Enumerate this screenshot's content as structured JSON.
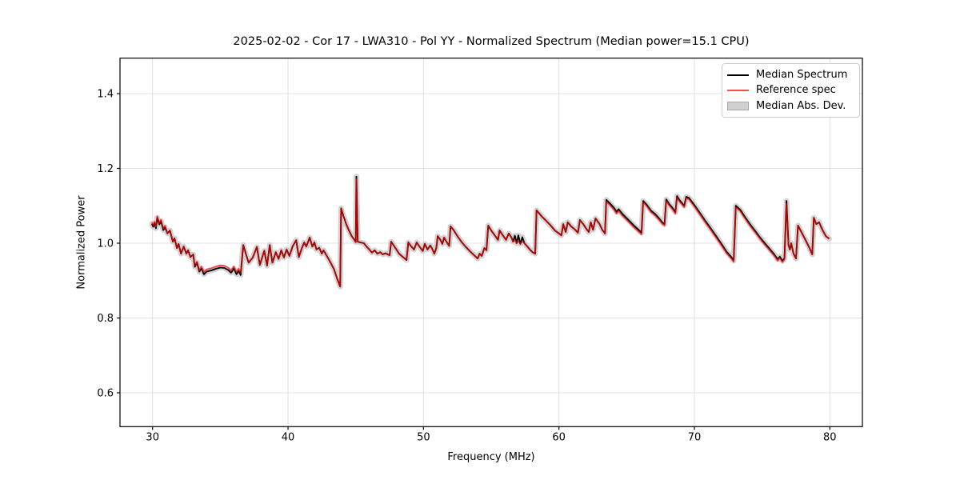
{
  "chart_data": {
    "type": "line",
    "title": "2025-02-02 - Cor 17 - LWA310 - Pol YY - Normalized Spectrum (Median power=15.1 CPU)",
    "xlabel": "Frequency (MHz)",
    "ylabel": "Normalized Power",
    "xlim": [
      27.6,
      82.4
    ],
    "ylim": [
      0.51,
      1.5
    ],
    "xticks": [
      30,
      40,
      50,
      60,
      70,
      80
    ],
    "xtick_labels": [
      "30",
      "40",
      "50",
      "60",
      "70",
      "80"
    ],
    "yticks": [
      0.6,
      0.8,
      1.0,
      1.2,
      1.4
    ],
    "ytick_labels": [
      "0.6",
      "0.8",
      "1.0",
      "1.2",
      "1.4"
    ],
    "grid": true,
    "legend": {
      "position": "upper right",
      "items": [
        {
          "label": "Median Spectrum",
          "type": "line",
          "color": "#000000"
        },
        {
          "label": "Reference spec",
          "type": "line",
          "color": "#ff4b4b"
        },
        {
          "label": "Median Abs. Dev.",
          "type": "patch",
          "color": "#d0d0d0",
          "edge": "#a8a8a8"
        }
      ]
    },
    "colors": {
      "median_line": "#000000",
      "reference_line": "#ff0000",
      "reference_opacity": 0.72,
      "mad_band": "#c8c8c8",
      "grid_line": "#e0e0e0",
      "frame": "#000000"
    },
    "series": {
      "x_unit": "MHz",
      "reference_points": [
        [
          29.95,
          1.056
        ],
        [
          30.05,
          1.048
        ],
        [
          30.15,
          1.058
        ],
        [
          30.25,
          1.044
        ],
        [
          30.35,
          1.072
        ],
        [
          30.5,
          1.054
        ],
        [
          30.62,
          1.063
        ],
        [
          30.8,
          1.039
        ],
        [
          30.92,
          1.047
        ],
        [
          31.1,
          1.026
        ],
        [
          31.28,
          1.034
        ],
        [
          31.5,
          1.004
        ],
        [
          31.62,
          1.013
        ],
        [
          31.8,
          0.987
        ],
        [
          31.92,
          0.998
        ],
        [
          32.1,
          0.972
        ],
        [
          32.3,
          0.991
        ],
        [
          32.5,
          0.972
        ],
        [
          32.62,
          0.981
        ],
        [
          32.8,
          0.963
        ],
        [
          33.0,
          0.97
        ],
        [
          33.12,
          0.94
        ],
        [
          33.28,
          0.951
        ],
        [
          33.45,
          0.927
        ],
        [
          33.6,
          0.938
        ],
        [
          33.8,
          0.923
        ],
        [
          34.0,
          0.93
        ],
        [
          34.2,
          0.932
        ],
        [
          34.4,
          0.934
        ],
        [
          34.7,
          0.938
        ],
        [
          35.0,
          0.941
        ],
        [
          35.3,
          0.94
        ],
        [
          35.6,
          0.934
        ],
        [
          35.8,
          0.927
        ],
        [
          36.0,
          0.938
        ],
        [
          36.2,
          0.923
        ],
        [
          36.35,
          0.932
        ],
        [
          36.5,
          0.921
        ],
        [
          36.7,
          0.995
        ],
        [
          36.9,
          0.97
        ],
        [
          37.1,
          0.948
        ],
        [
          37.4,
          0.962
        ],
        [
          37.7,
          0.99
        ],
        [
          37.92,
          0.942
        ],
        [
          38.25,
          0.98
        ],
        [
          38.45,
          0.94
        ],
        [
          38.65,
          0.995
        ],
        [
          38.85,
          0.948
        ],
        [
          39.1,
          0.976
        ],
        [
          39.3,
          0.958
        ],
        [
          39.5,
          0.981
        ],
        [
          39.7,
          0.962
        ],
        [
          39.9,
          0.983
        ],
        [
          40.1,
          0.966
        ],
        [
          40.35,
          0.992
        ],
        [
          40.6,
          1.008
        ],
        [
          40.8,
          0.963
        ],
        [
          41.0,
          0.985
        ],
        [
          41.2,
          1.002
        ],
        [
          41.35,
          0.991
        ],
        [
          41.6,
          1.015
        ],
        [
          41.8,
          0.991
        ],
        [
          41.95,
          1.002
        ],
        [
          42.1,
          0.983
        ],
        [
          42.3,
          0.988
        ],
        [
          42.5,
          0.972
        ],
        [
          42.62,
          0.981
        ],
        [
          42.8,
          0.97
        ],
        [
          43.1,
          0.951
        ],
        [
          43.4,
          0.93
        ],
        [
          43.6,
          0.908
        ],
        [
          43.85,
          0.884
        ],
        [
          43.92,
          1.093
        ],
        [
          44.1,
          1.072
        ],
        [
          44.3,
          1.051
        ],
        [
          44.5,
          1.034
        ],
        [
          44.7,
          1.019
        ],
        [
          44.9,
          1.009
        ],
        [
          45.0,
          1.003
        ],
        [
          45.05,
          1.172
        ],
        [
          45.15,
          1.004
        ],
        [
          45.35,
          1.002
        ],
        [
          45.6,
          1.0
        ],
        [
          45.8,
          0.991
        ],
        [
          46.0,
          0.983
        ],
        [
          46.2,
          0.975
        ],
        [
          46.4,
          0.981
        ],
        [
          46.6,
          0.972
        ],
        [
          46.8,
          0.976
        ],
        [
          47.0,
          0.97
        ],
        [
          47.2,
          0.973
        ],
        [
          47.5,
          0.968
        ],
        [
          47.62,
          1.004
        ],
        [
          47.8,
          0.994
        ],
        [
          48.0,
          0.983
        ],
        [
          48.2,
          0.972
        ],
        [
          48.45,
          0.964
        ],
        [
          48.75,
          0.955
        ],
        [
          48.88,
          1.002
        ],
        [
          49.1,
          0.991
        ],
        [
          49.3,
          0.983
        ],
        [
          49.5,
          1.002
        ],
        [
          49.7,
          0.991
        ],
        [
          49.95,
          0.979
        ],
        [
          50.1,
          0.998
        ],
        [
          50.3,
          0.983
        ],
        [
          50.5,
          0.994
        ],
        [
          50.65,
          0.985
        ],
        [
          50.8,
          0.972
        ],
        [
          50.95,
          0.987
        ],
        [
          51.05,
          1.019
        ],
        [
          51.25,
          1.009
        ],
        [
          51.4,
          0.998
        ],
        [
          51.52,
          1.015
        ],
        [
          51.7,
          1.004
        ],
        [
          51.9,
          0.993
        ],
        [
          52.0,
          1.045
        ],
        [
          52.25,
          1.034
        ],
        [
          52.5,
          1.019
        ],
        [
          52.8,
          1.004
        ],
        [
          53.1,
          0.991
        ],
        [
          53.5,
          0.976
        ],
        [
          53.8,
          0.966
        ],
        [
          54.0,
          0.959
        ],
        [
          54.15,
          0.972
        ],
        [
          54.3,
          0.966
        ],
        [
          54.5,
          0.987
        ],
        [
          54.65,
          0.981
        ],
        [
          54.78,
          1.047
        ],
        [
          55.0,
          1.034
        ],
        [
          55.3,
          1.019
        ],
        [
          55.5,
          1.009
        ],
        [
          55.62,
          1.034
        ],
        [
          55.9,
          1.019
        ],
        [
          56.1,
          1.009
        ],
        [
          56.3,
          1.026
        ],
        [
          56.5,
          1.015
        ],
        [
          56.62,
          1.004
        ],
        [
          56.75,
          1.008
        ],
        [
          56.88,
          1.0
        ],
        [
          57.0,
          1.005
        ],
        [
          57.15,
          0.998
        ],
        [
          57.3,
          1.004
        ],
        [
          57.45,
          1.0
        ],
        [
          57.6,
          0.994
        ],
        [
          57.85,
          0.983
        ],
        [
          58.05,
          0.976
        ],
        [
          58.25,
          0.972
        ],
        [
          58.35,
          1.088
        ],
        [
          58.7,
          1.073
        ],
        [
          59.0,
          1.062
        ],
        [
          59.4,
          1.047
        ],
        [
          59.7,
          1.034
        ],
        [
          60.0,
          1.026
        ],
        [
          60.18,
          1.021
        ],
        [
          60.32,
          1.051
        ],
        [
          60.5,
          1.03
        ],
        [
          60.65,
          1.056
        ],
        [
          60.9,
          1.045
        ],
        [
          61.2,
          1.036
        ],
        [
          61.4,
          1.028
        ],
        [
          61.55,
          1.062
        ],
        [
          61.8,
          1.051
        ],
        [
          62.0,
          1.04
        ],
        [
          62.2,
          1.03
        ],
        [
          62.35,
          1.056
        ],
        [
          62.52,
          1.036
        ],
        [
          62.7,
          1.066
        ],
        [
          63.0,
          1.051
        ],
        [
          63.2,
          1.036
        ],
        [
          63.4,
          1.026
        ],
        [
          63.5,
          1.111
        ],
        [
          63.8,
          1.1
        ],
        [
          64.1,
          1.088
        ],
        [
          64.25,
          1.079
        ],
        [
          64.4,
          1.086
        ],
        [
          64.7,
          1.073
        ],
        [
          65.0,
          1.062
        ],
        [
          65.3,
          1.051
        ],
        [
          65.6,
          1.04
        ],
        [
          65.9,
          1.03
        ],
        [
          66.1,
          1.023
        ],
        [
          66.22,
          1.109
        ],
        [
          66.5,
          1.098
        ],
        [
          66.8,
          1.083
        ],
        [
          67.1,
          1.074
        ],
        [
          67.4,
          1.062
        ],
        [
          67.65,
          1.051
        ],
        [
          67.8,
          1.047
        ],
        [
          67.92,
          1.113
        ],
        [
          68.15,
          1.1
        ],
        [
          68.4,
          1.09
        ],
        [
          68.6,
          1.079
        ],
        [
          68.72,
          1.122
        ],
        [
          68.9,
          1.111
        ],
        [
          69.1,
          1.103
        ],
        [
          69.25,
          1.096
        ],
        [
          69.4,
          1.12
        ],
        [
          69.6,
          1.117
        ],
        [
          70.0,
          1.098
        ],
        [
          70.4,
          1.077
        ],
        [
          70.8,
          1.056
        ],
        [
          71.2,
          1.036
        ],
        [
          71.6,
          1.015
        ],
        [
          72.0,
          0.994
        ],
        [
          72.4,
          0.972
        ],
        [
          72.7,
          0.96
        ],
        [
          72.9,
          0.95
        ],
        [
          73.06,
          1.096
        ],
        [
          73.4,
          1.085
        ],
        [
          73.7,
          1.068
        ],
        [
          74.1,
          1.047
        ],
        [
          74.5,
          1.028
        ],
        [
          74.9,
          1.009
        ],
        [
          75.2,
          0.996
        ],
        [
          75.55,
          0.981
        ],
        [
          75.9,
          0.966
        ],
        [
          76.15,
          0.953
        ],
        [
          76.3,
          0.96
        ],
        [
          76.5,
          0.949
        ],
        [
          76.65,
          0.956
        ],
        [
          76.8,
          1.105
        ],
        [
          76.95,
          0.994
        ],
        [
          77.05,
          0.983
        ],
        [
          77.15,
          1.0
        ],
        [
          77.32,
          0.972
        ],
        [
          77.5,
          0.959
        ],
        [
          77.65,
          1.047
        ],
        [
          77.9,
          1.03
        ],
        [
          78.2,
          1.009
        ],
        [
          78.5,
          0.987
        ],
        [
          78.7,
          0.97
        ],
        [
          78.82,
          1.068
        ],
        [
          79.0,
          1.051
        ],
        [
          79.2,
          1.056
        ],
        [
          79.45,
          1.036
        ],
        [
          79.7,
          1.019
        ],
        [
          79.95,
          1.012
        ]
      ],
      "median_equals_reference_plus": [
        [
          0,
          8,
          -0.004
        ],
        [
          21,
          23,
          -0.003
        ],
        [
          24,
          37,
          -0.006
        ],
        [
          79,
          79,
          0.006
        ],
        [
          138,
          138,
          0.012
        ],
        [
          140,
          140,
          0.016
        ],
        [
          142,
          142,
          0.012
        ],
        [
          171,
          181,
          0.005
        ],
        [
          182,
          220,
          0.004
        ],
        [
          221,
          221,
          0.008
        ]
      ],
      "mad_band_halfwidth": 0.008
    }
  }
}
